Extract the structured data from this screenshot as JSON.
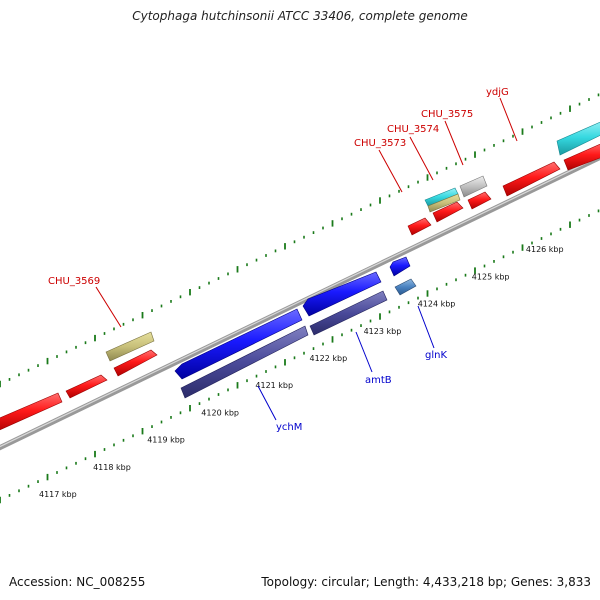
{
  "title": "Cytophaga hutchinsonii ATCC 33406, complete genome",
  "footer": {
    "accession": "Accession: NC_008255",
    "stats": "Topology: circular; Length: 4,433,218 bp; Genes: 3,833"
  },
  "ticks": [
    "4117 kbp",
    "4118 kbp",
    "4119 kbp",
    "4120 kbp",
    "4121 kbp",
    "4122 kbp",
    "4123 kbp",
    "4124 kbp",
    "4125 kbp",
    "4126 kbp"
  ],
  "gene_labels": {
    "chu_3569": "CHU_3569",
    "chu_3573": "CHU_3573",
    "chu_3574": "CHU_3574",
    "chu_3575": "CHU_3575",
    "ydjg": "ydjG",
    "ychm": "ychM",
    "amtb": "amtB",
    "glnk": "glnK"
  },
  "colors": {
    "forward_cds": "#ff1a1a",
    "reverse_cds": "#1a1aff",
    "trna_like": "#c8c07a",
    "rrna_like": "#35d8e0",
    "grey_feature": "#c0c0c0",
    "reverse_dark": "#4a4a9a",
    "steel_feature": "#4a82c0",
    "backbone": "#999999",
    "tick_marks": "#1a7a1a",
    "label_red": "#cc0000",
    "label_blue": "#0000cc"
  }
}
